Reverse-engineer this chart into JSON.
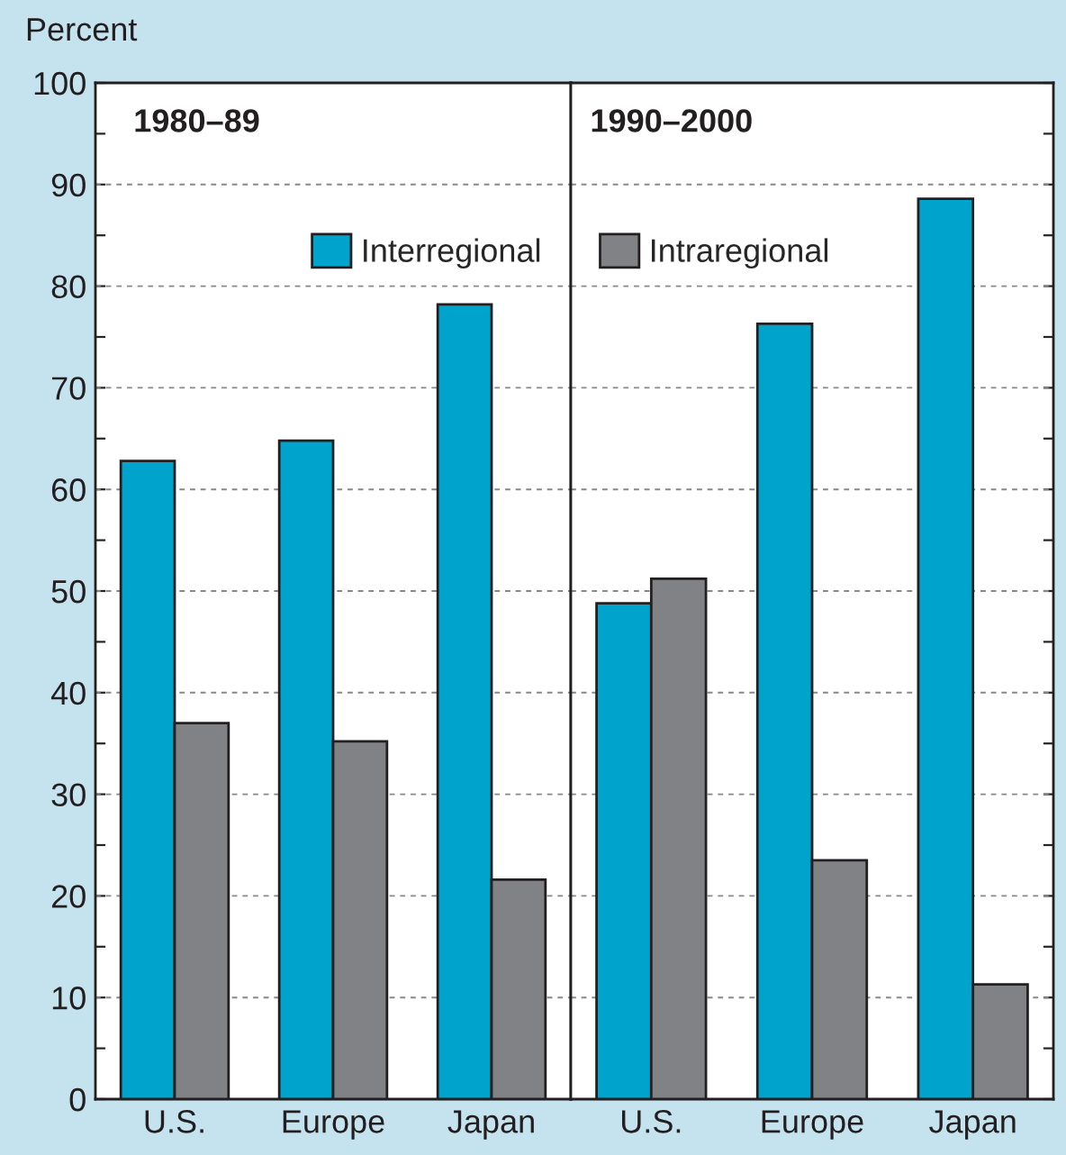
{
  "chart_data": [
    {
      "type": "bar",
      "title": "1980–89",
      "ylabel": "Percent",
      "categories": [
        "U.S.",
        "Europe",
        "Japan"
      ],
      "series": [
        {
          "name": "Interregional",
          "color": "#00a3cc",
          "values": [
            62.8,
            64.8,
            78.2
          ]
        },
        {
          "color": "#808285",
          "values": [
            37.0,
            35.2,
            21.6
          ]
        }
      ],
      "ylim": [
        0,
        100
      ],
      "yticks": [
        0,
        {
          "value": 5,
          "label": null
        },
        10,
        {
          "value": 15,
          "label": null
        },
        20,
        {
          "value": 25,
          "label": null
        },
        30,
        {
          "value": 35,
          "label": null
        },
        40,
        {
          "value": 45,
          "label": null
        },
        50,
        {
          "value": 55,
          "label": null
        },
        60,
        {
          "value": 65,
          "label": null
        },
        70,
        {
          "value": 75,
          "label": null
        },
        80,
        {
          "value": 85,
          "label": null
        },
        90,
        {
          "value": 95,
          "label": null
        },
        100
      ],
      "grid": "y",
      "legend": "top right"
    },
    {
      "type": "bar",
      "title": "1990–2000",
      "categories": [
        "U.S.",
        "Europe",
        "Japan"
      ],
      "series": [
        {
          "color": "#00a3cc",
          "values": [
            48.8,
            76.3,
            88.6
          ]
        },
        {
          "name": "Intraregional",
          "color": "#808285",
          "values": [
            51.2,
            23.5,
            11.3
          ]
        }
      ],
      "ylim": [
        0,
        100
      ],
      "yticks": [
        0,
        {
          "value": 5,
          "label": null
        },
        10,
        {
          "value": 15,
          "label": null
        },
        20,
        {
          "value": 25,
          "label": null
        },
        30,
        {
          "value": 35,
          "label": null
        },
        40,
        {
          "value": 45,
          "label": null
        },
        50,
        {
          "value": 55,
          "label": null
        },
        60,
        {
          "value": 65,
          "label": null
        },
        70,
        {
          "value": 75,
          "label": null
        },
        80,
        {
          "value": 85,
          "label": null
        },
        90,
        {
          "value": 95,
          "label": null
        },
        100
      ],
      "grid": "y",
      "legend": "top left",
      "tick_labels": "x"
    }
  ]
}
